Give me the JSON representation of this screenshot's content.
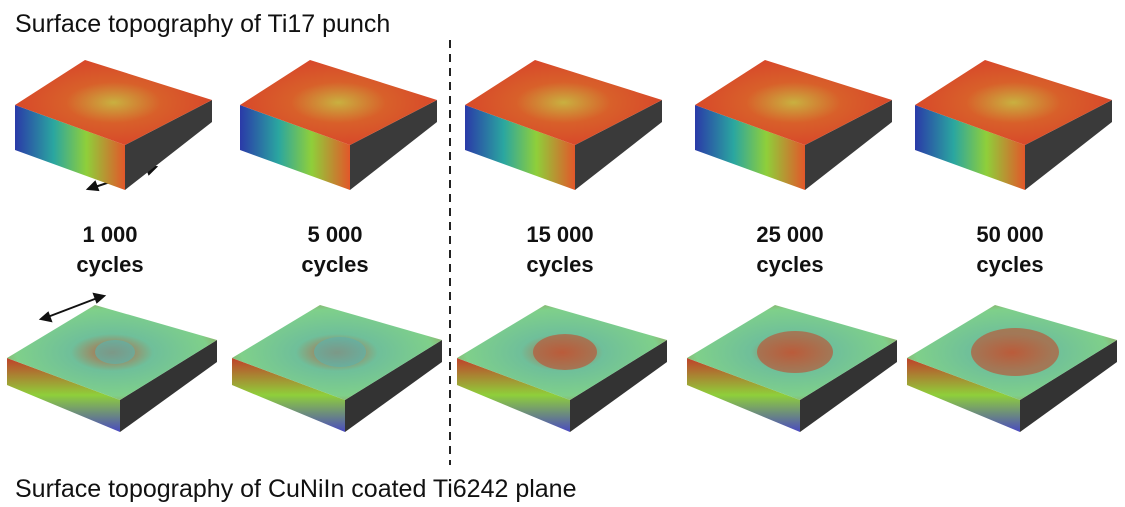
{
  "top_title": "Surface topography of Ti17 punch",
  "bottom_title": "Surface topography of CuNiIn coated Ti6242 plane",
  "labels": [
    {
      "count": "1 000",
      "unit": "cycles"
    },
    {
      "count": "5 000",
      "unit": "cycles"
    },
    {
      "count": "15 000",
      "unit": "cycles"
    },
    {
      "count": "25 000",
      "unit": "cycles"
    },
    {
      "count": "50 000",
      "unit": "cycles"
    }
  ]
}
